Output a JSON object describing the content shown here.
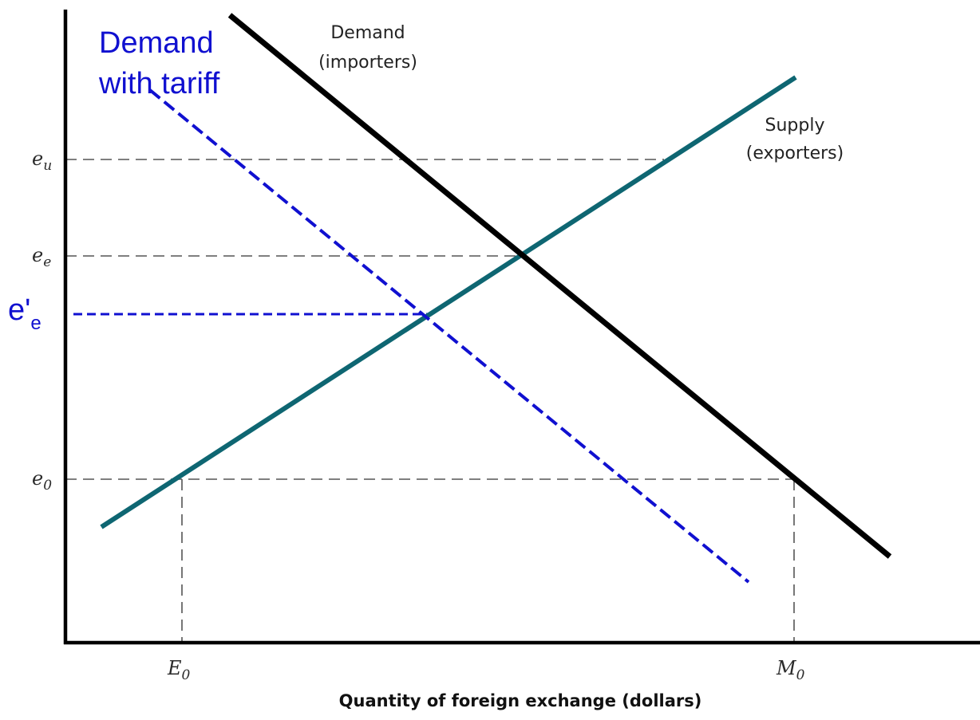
{
  "diagram": {
    "x_axis_title": "Quantity of foreign exchange (dollars)",
    "y_ticks": {
      "e_u": {
        "base": "e",
        "sub": "u"
      },
      "e_e": {
        "base": "e",
        "sub": "e"
      },
      "e_0": {
        "base": "e",
        "sub": "0"
      },
      "e_prime_e": {
        "base": "e'",
        "sub": "e"
      }
    },
    "x_ticks": {
      "E_0": {
        "base": "E",
        "sub": "0"
      },
      "M_0": {
        "base": "M",
        "sub": "0"
      }
    },
    "curves": {
      "demand": {
        "line1": "Demand",
        "line2": "(importers)",
        "color": "#000000"
      },
      "supply": {
        "line1": "Supply",
        "line2": "(exporters)",
        "color": "#0e6672"
      },
      "demand_tariff": {
        "line1": "Demand",
        "line2": "with tariff",
        "color": "#1010d0"
      }
    },
    "colors": {
      "axis": "#000000",
      "guide": "#555555",
      "tariff_guide": "#1010d0"
    }
  }
}
